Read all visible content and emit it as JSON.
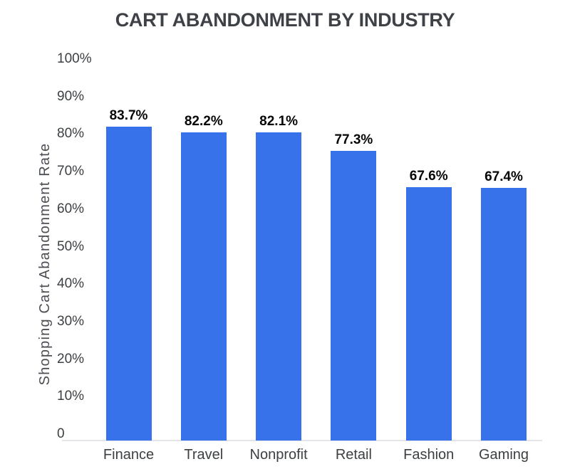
{
  "chart_data": {
    "type": "bar",
    "title": "CART ABANDONMENT BY INDUSTRY",
    "xlabel": "",
    "ylabel": "Shopping Cart Abandonment Rate",
    "categories": [
      "Finance",
      "Travel",
      "Nonprofit",
      "Retail",
      "Fashion",
      "Gaming"
    ],
    "values": [
      83.7,
      82.2,
      82.1,
      77.3,
      67.6,
      67.4
    ],
    "value_labels": [
      "83.7%",
      "82.2%",
      "82.1%",
      "77.3%",
      "67.6%",
      "67.4%"
    ],
    "y_ticks": [
      {
        "label": "100%",
        "value": 100
      },
      {
        "label": "90%",
        "value": 90
      },
      {
        "label": "80%",
        "value": 80
      },
      {
        "label": "70%",
        "value": 70
      },
      {
        "label": "60%",
        "value": 60
      },
      {
        "label": "50%",
        "value": 50
      },
      {
        "label": "40%",
        "value": 40
      },
      {
        "label": "30%",
        "value": 30
      },
      {
        "label": "20%",
        "value": 20
      },
      {
        "label": "10%",
        "value": 10
      },
      {
        "label": "0",
        "value": 0
      }
    ],
    "ylim": [
      0,
      100
    ],
    "grid": false,
    "legend": "none",
    "bar_color": "#3872EB",
    "axis_line_color": "#e3e5e8",
    "title_color": "#3e4247",
    "label_color": "#3c4043",
    "value_label_color": "#060606"
  }
}
